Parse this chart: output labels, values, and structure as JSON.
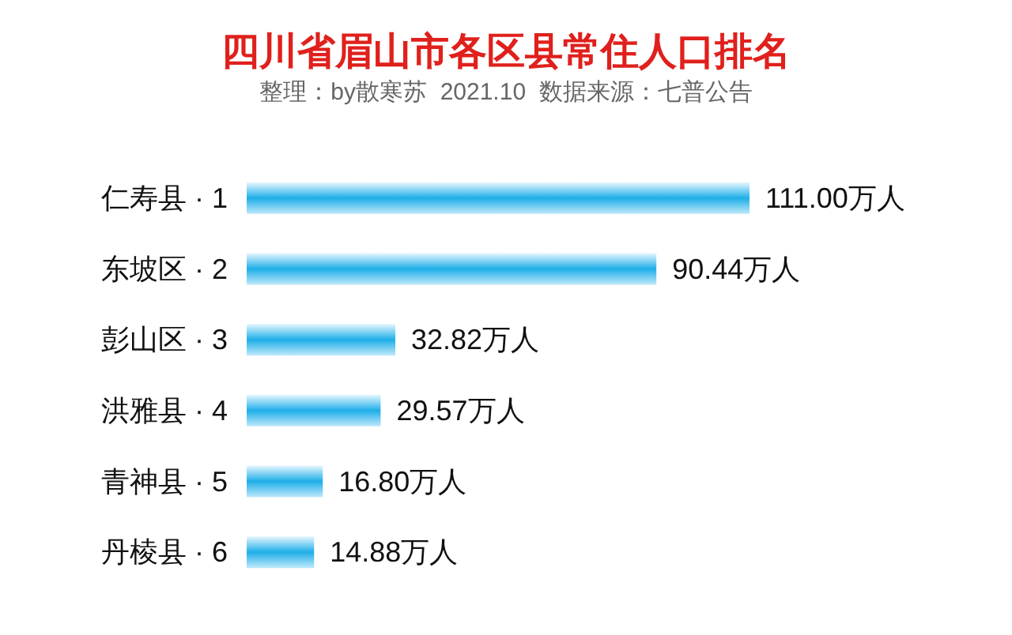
{
  "chart_data": {
    "type": "bar",
    "orientation": "horizontal",
    "title": "四川省眉山市各区县常住人口排名",
    "subtitle": "整理：by散寒苏  2021.10  数据来源：七普公告",
    "categories": [
      "仁寿县 · 1",
      "东坡区 · 2",
      "彭山区 · 3",
      "洪雅县 · 4",
      "青神县 · 5",
      "丹棱县 · 6"
    ],
    "values": [
      111.0,
      90.44,
      32.82,
      29.57,
      16.8,
      14.88
    ],
    "value_labels": [
      "111.00万人",
      "90.44万人",
      "32.82万人",
      "29.57万人",
      "16.80万人",
      "14.88万人"
    ],
    "color": "#1eaee8"
  }
}
